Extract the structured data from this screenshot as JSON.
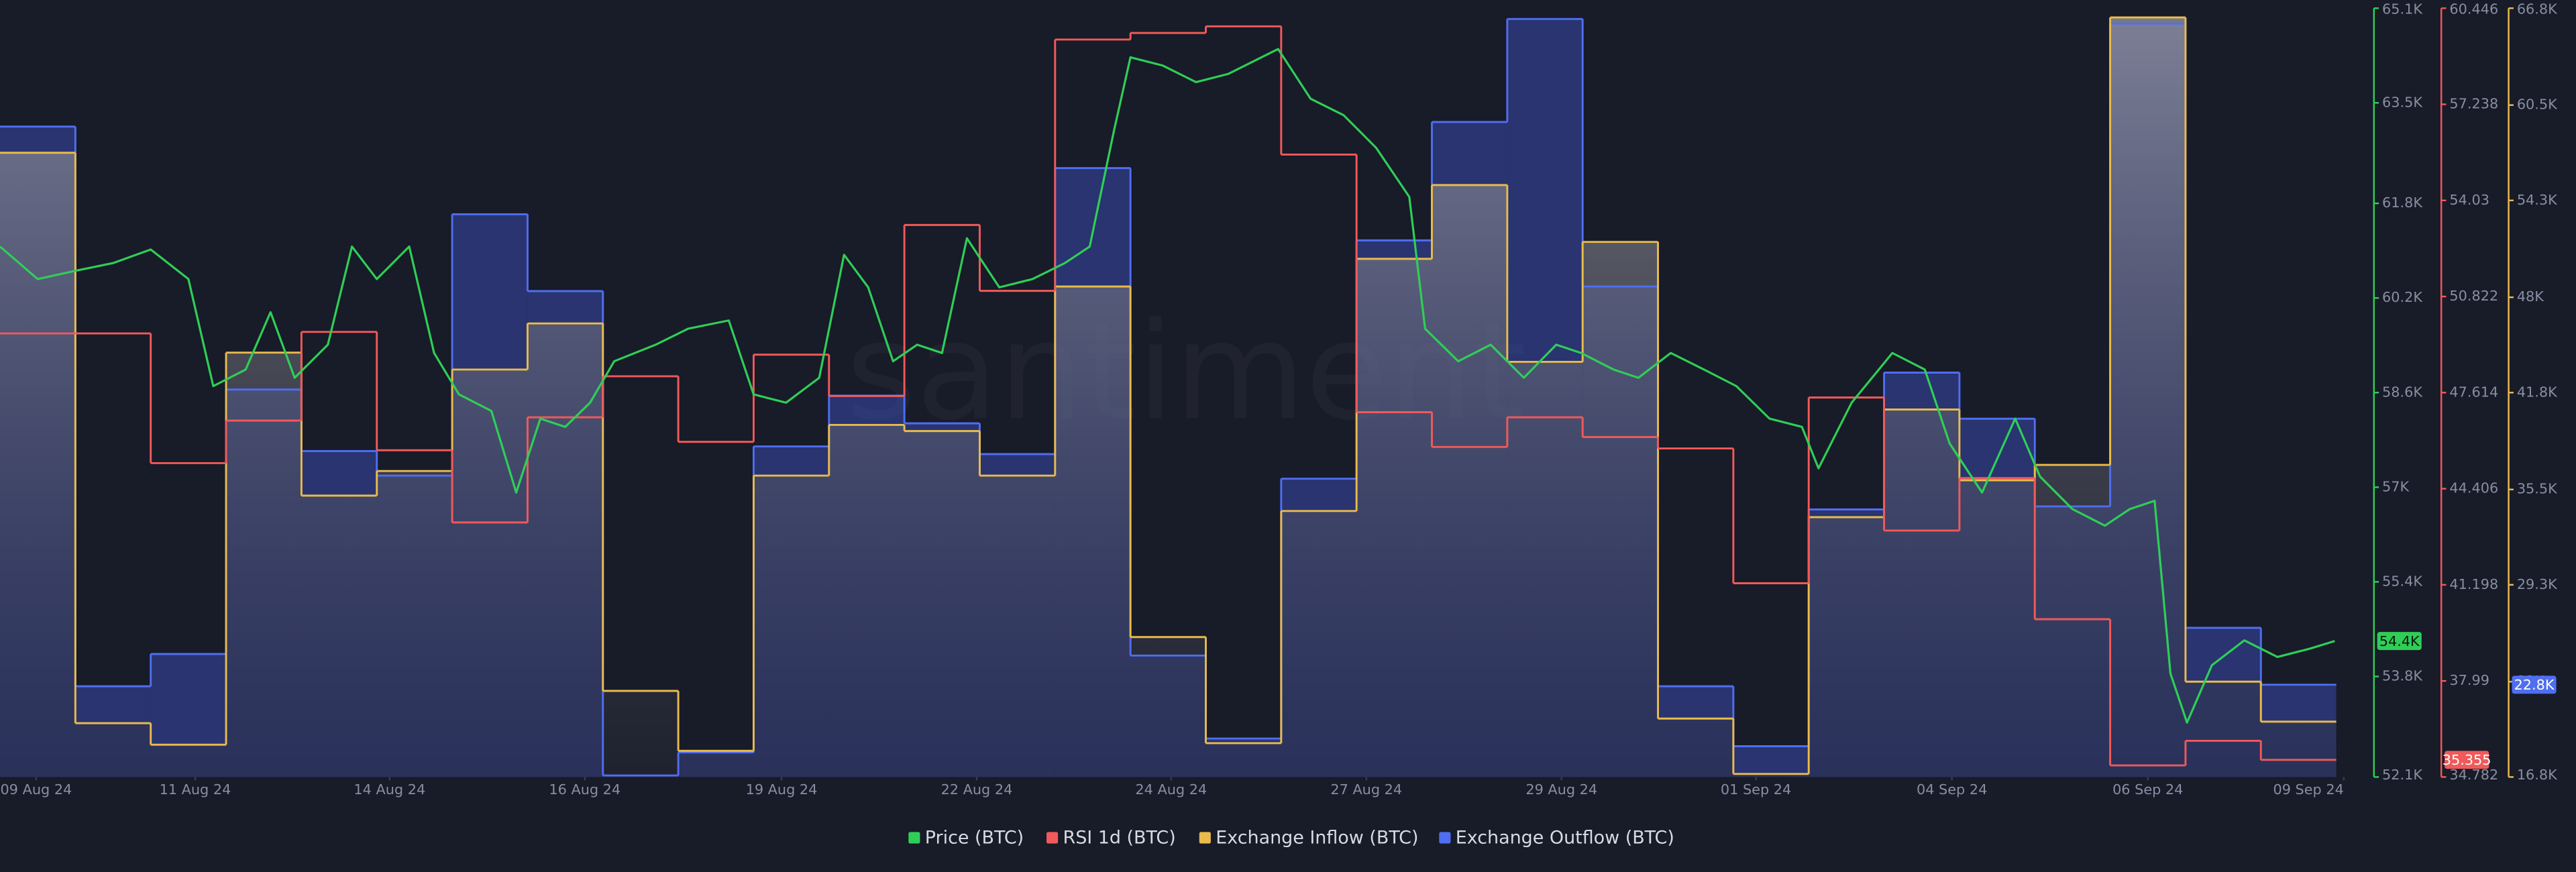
{
  "chart_data": {
    "type": "line",
    "watermark": "santiment",
    "xlim": [
      0,
      31.5
    ],
    "xticks": [
      {
        "value": 0.48,
        "label": "09 Aug 24"
      },
      {
        "value": 2.59,
        "label": "11 Aug 24"
      },
      {
        "value": 5.17,
        "label": "14 Aug 24"
      },
      {
        "value": 7.76,
        "label": "16 Aug 24"
      },
      {
        "value": 10.37,
        "label": "19 Aug 24"
      },
      {
        "value": 12.96,
        "label": "22 Aug 24"
      },
      {
        "value": 15.54,
        "label": "24 Aug 24"
      },
      {
        "value": 18.13,
        "label": "27 Aug 24"
      },
      {
        "value": 20.72,
        "label": "29 Aug 24"
      },
      {
        "value": 23.3,
        "label": "01 Sep 24"
      },
      {
        "value": 25.9,
        "label": "04 Sep 24"
      },
      {
        "value": 28.5,
        "label": "06 Sep 24"
      },
      {
        "value": 31.1,
        "label": "09 Sep 24"
      }
    ],
    "ylim": [
      52.1,
      65.1
    ],
    "yticks": [
      {
        "value": 52.1,
        "label": "52.1K"
      },
      {
        "value": 53.8,
        "label": "53.8K"
      },
      {
        "value": 55.4,
        "label": "55.4K"
      },
      {
        "value": 57,
        "label": "57K"
      },
      {
        "value": 58.6,
        "label": "58.6K"
      },
      {
        "value": 60.2,
        "label": "60.2K"
      },
      {
        "value": 61.8,
        "label": "61.8K"
      },
      {
        "value": 63.5,
        "label": "63.5K"
      },
      {
        "value": 65.1,
        "label": "65.1K"
      }
    ],
    "y2lim": [
      34.782,
      60.446
    ],
    "y2ticks": [
      34.782,
      37.99,
      41.198,
      44.406,
      47.614,
      50.822,
      54.03,
      57.238,
      60.446
    ],
    "y3lim": [
      16.8,
      66.8
    ],
    "y3ticks": [
      {
        "value": 16.8,
        "label": "16.8K"
      },
      {
        "value": 23,
        "label": "23K"
      },
      {
        "value": 29.3,
        "label": "29.3K"
      },
      {
        "value": 35.5,
        "label": "35.5K"
      },
      {
        "value": 41.8,
        "label": "41.8K"
      },
      {
        "value": 48,
        "label": "48K"
      },
      {
        "value": 54.3,
        "label": "54.3K"
      },
      {
        "value": 60.5,
        "label": "60.5K"
      },
      {
        "value": 66.8,
        "label": "66.8K"
      }
    ],
    "series": [
      {
        "name": "Price (BTC)",
        "color": "#2fce57",
        "axis": "y",
        "step": false,
        "x": [
          0,
          0.5,
          1,
          1.5,
          2,
          2.5,
          2.83,
          3.26,
          3.59,
          3.91,
          4.35,
          4.67,
          5,
          5.43,
          5.76,
          6.09,
          6.52,
          6.85,
          7.17,
          7.5,
          7.83,
          8.15,
          8.7,
          9.13,
          9.67,
          10,
          10.43,
          10.87,
          11.2,
          11.52,
          11.85,
          12.17,
          12.5,
          12.83,
          13.26,
          13.7,
          14.13,
          14.46,
          14.78,
          15,
          15.43,
          15.87,
          16.3,
          16.96,
          17.39,
          17.83,
          18.26,
          18.7,
          18.91,
          19.35,
          19.78,
          20.22,
          20.65,
          20.98,
          21.41,
          21.74,
          22.17,
          22.61,
          23.04,
          23.48,
          23.91,
          24.13,
          24.57,
          25.11,
          25.54,
          25.87,
          26.3,
          26.74,
          27.07,
          27.5,
          27.93,
          28.26,
          28.59,
          28.8,
          29.02,
          29.35,
          29.78,
          30.22,
          30.65,
          30.98
        ],
        "values": [
          61.07,
          60.52,
          60.66,
          60.79,
          61.02,
          60.52,
          58.71,
          58.99,
          59.96,
          58.85,
          59.41,
          61.07,
          60.52,
          61.07,
          59.27,
          58.57,
          58.29,
          56.91,
          58.16,
          58.02,
          58.43,
          59.13,
          59.41,
          59.68,
          59.82,
          58.57,
          58.43,
          58.85,
          60.93,
          60.38,
          59.13,
          59.41,
          59.27,
          61.21,
          60.38,
          60.52,
          60.79,
          61.07,
          63.02,
          64.27,
          64.13,
          63.85,
          63.99,
          64.41,
          63.57,
          63.29,
          62.74,
          61.91,
          59.68,
          59.13,
          59.41,
          58.85,
          59.41,
          59.27,
          58.99,
          58.85,
          59.27,
          58.99,
          58.71,
          58.16,
          58.02,
          57.32,
          58.43,
          59.27,
          58.99,
          57.74,
          56.91,
          58.16,
          57.18,
          56.63,
          56.35,
          56.63,
          56.77,
          53.85,
          53.02,
          53.99,
          54.41,
          54.13,
          54.27,
          54.4
        ],
        "value_labels": [
          null,
          null,
          null,
          null,
          null,
          null,
          null,
          null,
          null,
          null,
          null,
          null,
          null,
          null,
          null,
          null,
          null,
          null,
          null,
          null,
          null,
          null,
          null,
          null,
          null,
          null,
          null,
          null,
          null,
          null,
          null,
          null,
          null,
          null,
          null,
          null,
          null,
          null,
          null,
          null,
          null,
          null,
          null,
          null,
          null,
          null,
          null,
          null,
          null,
          null,
          null,
          null,
          null,
          null,
          null,
          null,
          null,
          null,
          null,
          null,
          null,
          null,
          null,
          null,
          null,
          null,
          null,
          null,
          null,
          null,
          null,
          null,
          null,
          null,
          null,
          null,
          null,
          null,
          null,
          "54.4K"
        ]
      },
      {
        "name": "RSI 1d (BTC)",
        "color": "#f05a5a",
        "axis": "y2",
        "step": true,
        "x": [
          0,
          1,
          2,
          3,
          4,
          5,
          6,
          7,
          8,
          9,
          10,
          11,
          12,
          13,
          14,
          15,
          16,
          17,
          18,
          19,
          20,
          21,
          22,
          23,
          24,
          25,
          26,
          27,
          28,
          29,
          30
        ],
        "values": [
          49.59,
          49.59,
          45.26,
          46.68,
          49.64,
          45.69,
          43.28,
          46.79,
          48.16,
          45.97,
          48.88,
          47.5,
          53.21,
          51.01,
          59.4,
          59.62,
          59.84,
          55.56,
          46.96,
          45.8,
          46.79,
          46.13,
          45.75,
          41.25,
          47.45,
          43.01,
          44.76,
          40.05,
          35.17,
          35.99,
          35.355
        ],
        "value_labels": [
          null,
          null,
          null,
          null,
          null,
          null,
          null,
          null,
          null,
          null,
          null,
          null,
          null,
          null,
          null,
          null,
          null,
          null,
          null,
          null,
          null,
          null,
          null,
          null,
          null,
          null,
          null,
          null,
          null,
          null,
          "35.355"
        ]
      },
      {
        "name": "Exchange Inflow (BTC)",
        "color": "#e9bb4c",
        "axis": "y3",
        "step": true,
        "x": [
          0,
          1,
          2,
          3,
          4,
          5,
          6,
          7,
          8,
          9,
          10,
          11,
          12,
          13,
          14,
          15,
          16,
          17,
          18,
          19,
          20,
          21,
          22,
          23,
          24,
          25,
          26,
          27,
          28,
          29,
          30
        ],
        "values": [
          57.4,
          20.3,
          18.9,
          44.4,
          35.1,
          36.7,
          43.3,
          46.3,
          22.4,
          18.5,
          36.4,
          39.7,
          39.3,
          36.4,
          48.7,
          25.9,
          19.0,
          34.1,
          50.5,
          55.3,
          43.8,
          51.6,
          20.6,
          17.0,
          33.7,
          40.7,
          36.1,
          37.1,
          66.2,
          23.0,
          20.4
        ]
      },
      {
        "name": "Exchange Outflow (BTC)",
        "color": "#4f6ef0",
        "axis": "y3",
        "step": true,
        "x": [
          0,
          1,
          2,
          3,
          4,
          5,
          6,
          7,
          8,
          9,
          10,
          11,
          12,
          13,
          14,
          15,
          16,
          17,
          18,
          19,
          20,
          21,
          22,
          23,
          24,
          25,
          26,
          27,
          28,
          29,
          30
        ],
        "values": [
          59.1,
          22.7,
          24.8,
          42.0,
          38.0,
          36.4,
          53.4,
          48.4,
          16.9,
          18.4,
          38.3,
          41.6,
          39.8,
          37.8,
          56.4,
          24.7,
          19.3,
          36.2,
          51.7,
          59.4,
          66.1,
          48.7,
          22.7,
          18.8,
          34.2,
          43.1,
          40.1,
          34.4,
          65.8,
          26.5,
          22.8
        ],
        "value_labels": [
          null,
          null,
          null,
          null,
          null,
          null,
          null,
          null,
          null,
          null,
          null,
          null,
          null,
          null,
          null,
          null,
          null,
          null,
          null,
          null,
          null,
          null,
          null,
          null,
          null,
          null,
          null,
          null,
          null,
          null,
          "22.8K"
        ]
      }
    ]
  }
}
